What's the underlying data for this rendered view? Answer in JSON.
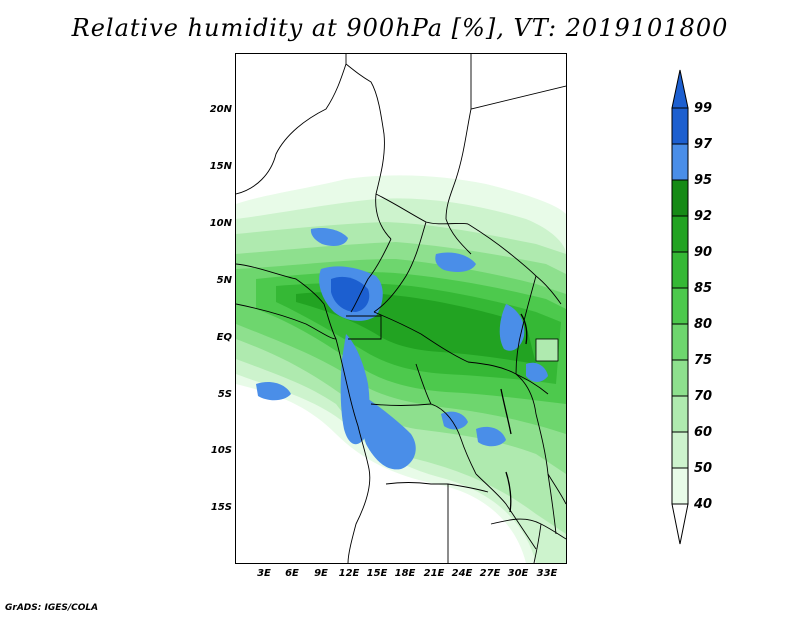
{
  "title": "Relative humidity at 900hPa [%], VT: 2019101800",
  "map": {
    "lat_labels": [
      "20N",
      "15N",
      "10N",
      "5N",
      "EQ",
      "5S",
      "10S",
      "15S"
    ],
    "lon_labels": [
      "3E",
      "6E",
      "9E",
      "12E",
      "15E",
      "18E",
      "21E",
      "24E",
      "27E",
      "30E",
      "33E"
    ],
    "variable": "relative humidity",
    "level": "900hPa",
    "units": "%",
    "valid_time": "2019101800"
  },
  "colorbar": {
    "levels": [
      "99",
      "97",
      "95",
      "92",
      "90",
      "85",
      "80",
      "75",
      "70",
      "60",
      "50",
      "40"
    ],
    "colors": [
      "#1c5fd0",
      "#4a8ee8",
      "#168a16",
      "#22a322",
      "#35b835",
      "#4dc94d",
      "#6ed66e",
      "#8ee08e",
      "#afeaaf",
      "#cdf3cd",
      "#e8fbe8",
      "#ffffff"
    ],
    "top_arrow_color": "#1c5fd0"
  },
  "credit": "GrADS: IGES/COLA"
}
